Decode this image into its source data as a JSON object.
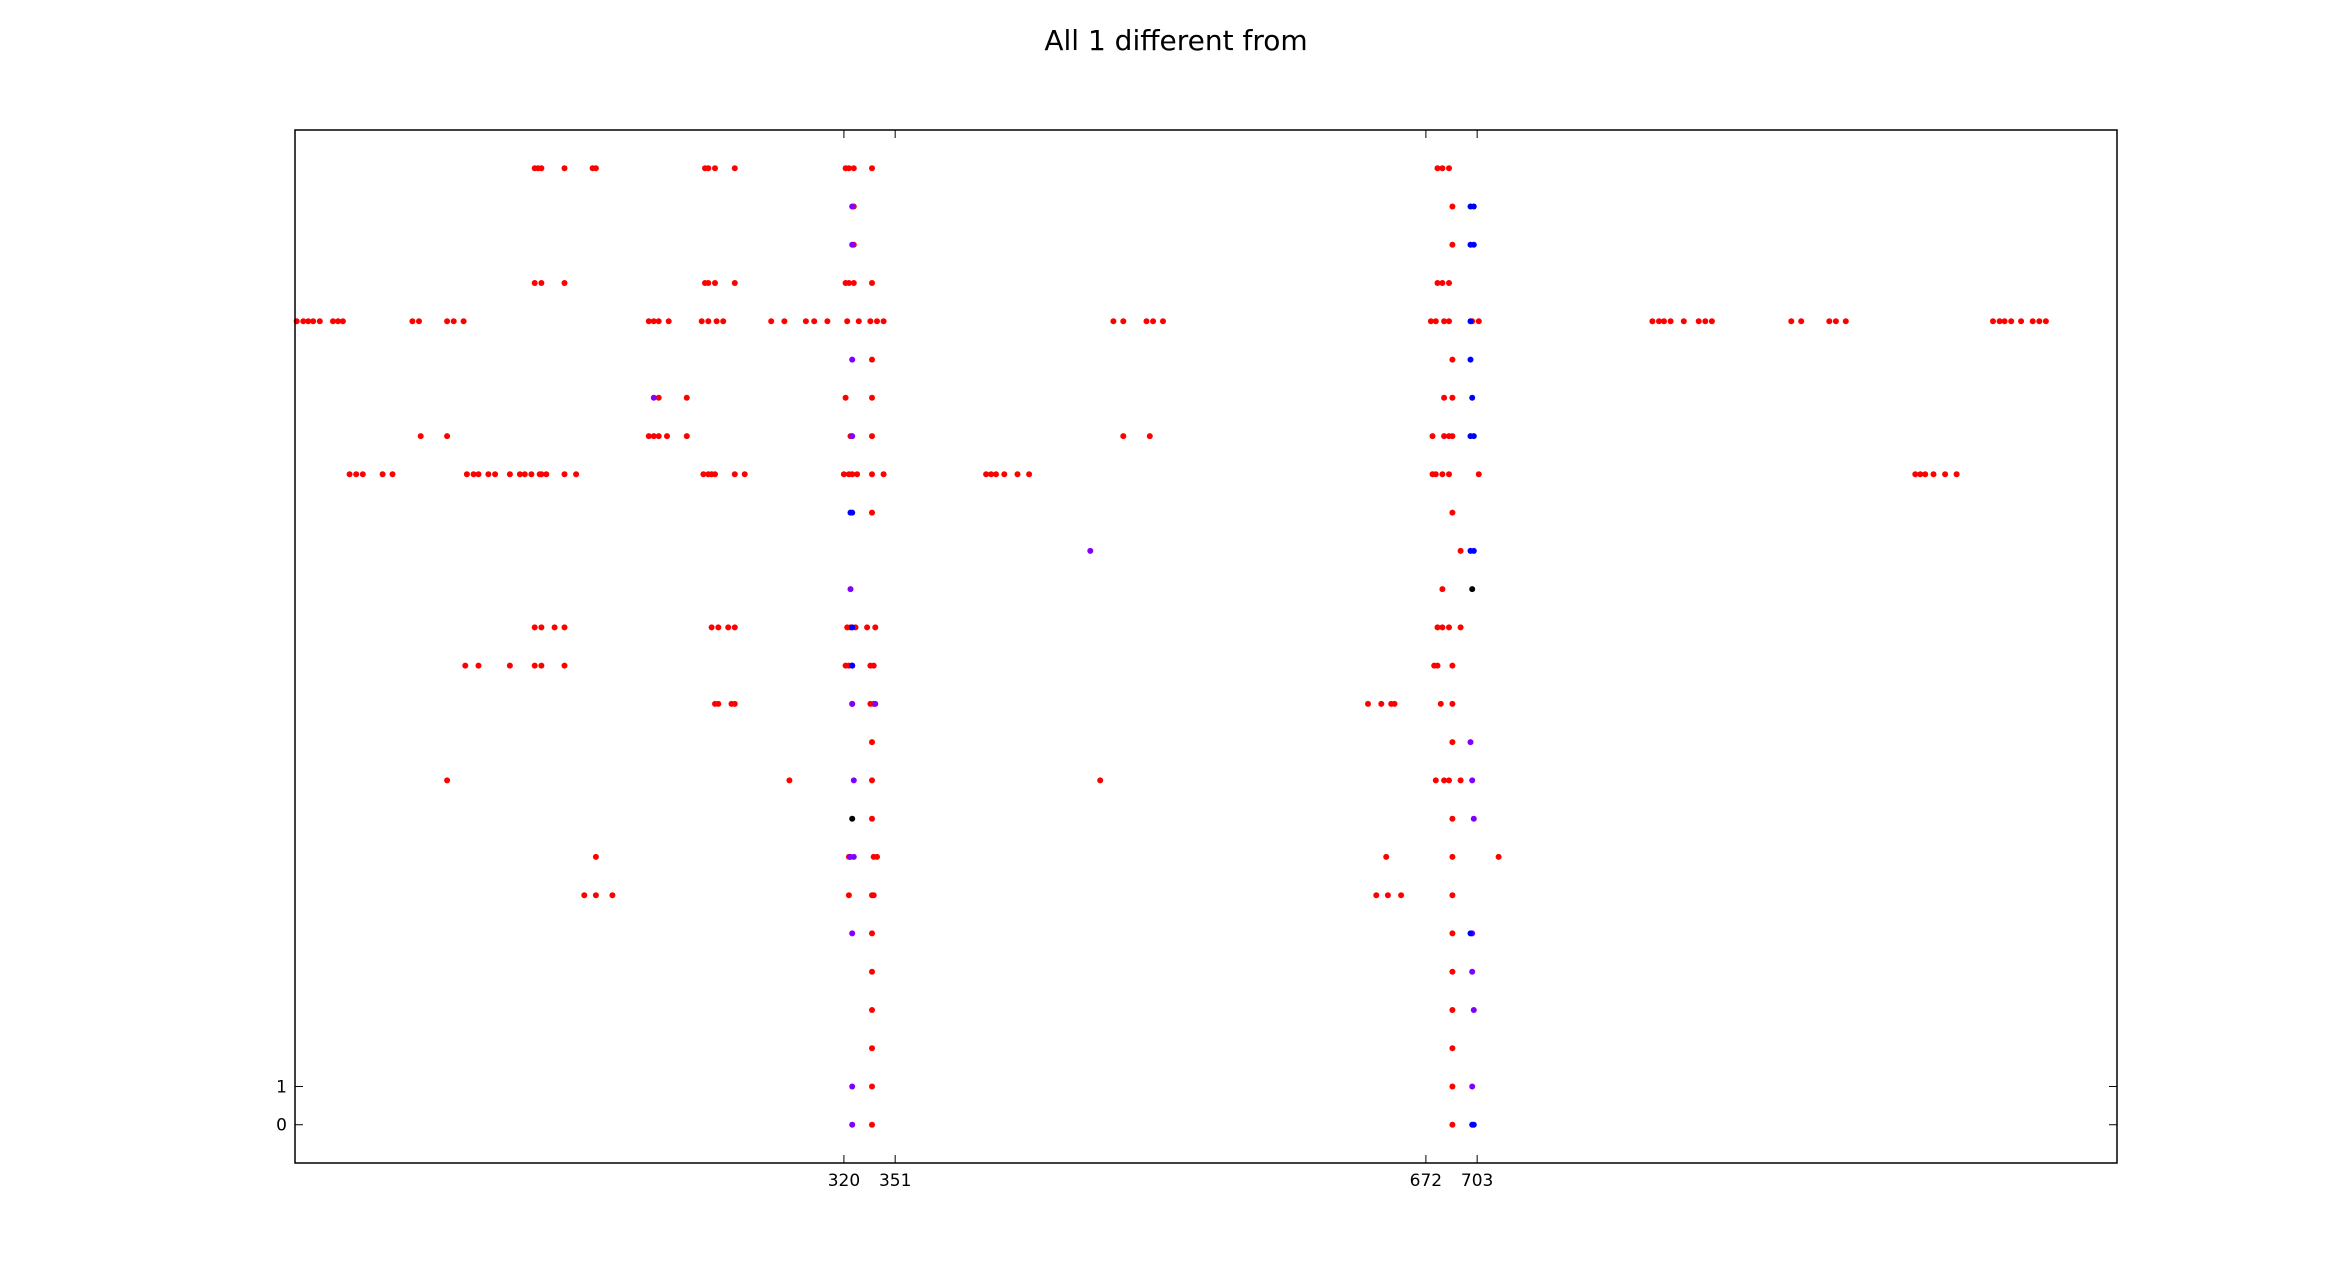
{
  "chart_data": {
    "type": "scatter",
    "title": "All 1 different from",
    "xlabel": "",
    "ylabel": "",
    "xlim": [
      -12,
      1090
    ],
    "ylim": [
      -1,
      26
    ],
    "grid": false,
    "xticks": [
      320,
      351,
      672,
      703
    ],
    "yticks": [
      0,
      1
    ],
    "colors": {
      "red": "#ff0000",
      "purple": "#7f00ff",
      "blue": "#0000ff",
      "black": "#000000"
    },
    "series": [
      {
        "color": "red",
        "points": [
          [
            133,
            25
          ],
          [
            135,
            25
          ],
          [
            137,
            25
          ],
          [
            151,
            25
          ],
          [
            168,
            25
          ],
          [
            170,
            25
          ],
          [
            236,
            25
          ],
          [
            238,
            25
          ],
          [
            242,
            25
          ],
          [
            254,
            25
          ],
          [
            321,
            25
          ],
          [
            323,
            25
          ],
          [
            326,
            25
          ],
          [
            337,
            25
          ],
          [
            679,
            25
          ],
          [
            682,
            25
          ],
          [
            686,
            25
          ],
          [
            326,
            24
          ],
          [
            688,
            24
          ],
          [
            326,
            23
          ],
          [
            688,
            23
          ],
          [
            133,
            22
          ],
          [
            137,
            22
          ],
          [
            151,
            22
          ],
          [
            236,
            22
          ],
          [
            238,
            22
          ],
          [
            242,
            22
          ],
          [
            254,
            22
          ],
          [
            321,
            22
          ],
          [
            323,
            22
          ],
          [
            326,
            22
          ],
          [
            337,
            22
          ],
          [
            679,
            22
          ],
          [
            682,
            22
          ],
          [
            686,
            22
          ],
          [
            -11,
            21
          ],
          [
            -7,
            21
          ],
          [
            -4,
            21
          ],
          [
            -1,
            21
          ],
          [
            3,
            21
          ],
          [
            11,
            21
          ],
          [
            14,
            21
          ],
          [
            17,
            21
          ],
          [
            59,
            21
          ],
          [
            63,
            21
          ],
          [
            80,
            21
          ],
          [
            84,
            21
          ],
          [
            90,
            21
          ],
          [
            202,
            21
          ],
          [
            205,
            21
          ],
          [
            208,
            21
          ],
          [
            214,
            21
          ],
          [
            234,
            21
          ],
          [
            238,
            21
          ],
          [
            243,
            21
          ],
          [
            247,
            21
          ],
          [
            276,
            21
          ],
          [
            284,
            21
          ],
          [
            297,
            21
          ],
          [
            302,
            21
          ],
          [
            310,
            21
          ],
          [
            322,
            21
          ],
          [
            329,
            21
          ],
          [
            336,
            21
          ],
          [
            340,
            21
          ],
          [
            344,
            21
          ],
          [
            483,
            21
          ],
          [
            489,
            21
          ],
          [
            503,
            21
          ],
          [
            507,
            21
          ],
          [
            513,
            21
          ],
          [
            675,
            21
          ],
          [
            678,
            21
          ],
          [
            683,
            21
          ],
          [
            686,
            21
          ],
          [
            700,
            21
          ],
          [
            704,
            21
          ],
          [
            809,
            21
          ],
          [
            813,
            21
          ],
          [
            816,
            21
          ],
          [
            820,
            21
          ],
          [
            828,
            21
          ],
          [
            837,
            21
          ],
          [
            841,
            21
          ],
          [
            845,
            21
          ],
          [
            893,
            21
          ],
          [
            899,
            21
          ],
          [
            916,
            21
          ],
          [
            920,
            21
          ],
          [
            926,
            21
          ],
          [
            1015,
            21
          ],
          [
            1019,
            21
          ],
          [
            1022,
            21
          ],
          [
            1026,
            21
          ],
          [
            1032,
            21
          ],
          [
            1039,
            21
          ],
          [
            1043,
            21
          ],
          [
            1047,
            21
          ],
          [
            337,
            20
          ],
          [
            688,
            20
          ],
          [
            208,
            19
          ],
          [
            225,
            19
          ],
          [
            321,
            19
          ],
          [
            337,
            19
          ],
          [
            683,
            19
          ],
          [
            688,
            19
          ],
          [
            64,
            18
          ],
          [
            80,
            18
          ],
          [
            202,
            18
          ],
          [
            205,
            18
          ],
          [
            208,
            18
          ],
          [
            213,
            18
          ],
          [
            225,
            18
          ],
          [
            324,
            18
          ],
          [
            337,
            18
          ],
          [
            489,
            18
          ],
          [
            505,
            18
          ],
          [
            676,
            18
          ],
          [
            683,
            18
          ],
          [
            686,
            18
          ],
          [
            688,
            18
          ],
          [
            688,
            16
          ],
          [
            21,
            17
          ],
          [
            25,
            17
          ],
          [
            29,
            17
          ],
          [
            41,
            17
          ],
          [
            47,
            17
          ],
          [
            92,
            17
          ],
          [
            96,
            17
          ],
          [
            99,
            17
          ],
          [
            105,
            17
          ],
          [
            109,
            17
          ],
          [
            118,
            17
          ],
          [
            124,
            17
          ],
          [
            127,
            17
          ],
          [
            131,
            17
          ],
          [
            136,
            17
          ],
          [
            137,
            17
          ],
          [
            140,
            17
          ],
          [
            151,
            17
          ],
          [
            158,
            17
          ],
          [
            235,
            17
          ],
          [
            238,
            17
          ],
          [
            240,
            17
          ],
          [
            242,
            17
          ],
          [
            254,
            17
          ],
          [
            260,
            17
          ],
          [
            320,
            17
          ],
          [
            323,
            17
          ],
          [
            325,
            17
          ],
          [
            328,
            17
          ],
          [
            337,
            17
          ],
          [
            344,
            17
          ],
          [
            406,
            17
          ],
          [
            409,
            17
          ],
          [
            412,
            17
          ],
          [
            417,
            17
          ],
          [
            425,
            17
          ],
          [
            432,
            17
          ],
          [
            676,
            17
          ],
          [
            678,
            17
          ],
          [
            682,
            17
          ],
          [
            686,
            17
          ],
          [
            704,
            17
          ],
          [
            968,
            17
          ],
          [
            971,
            17
          ],
          [
            974,
            17
          ],
          [
            979,
            17
          ],
          [
            986,
            17
          ],
          [
            993,
            17
          ],
          [
            337,
            16
          ],
          [
            693,
            15
          ],
          [
            682,
            14
          ],
          [
            133,
            13
          ],
          [
            137,
            13
          ],
          [
            145,
            13
          ],
          [
            151,
            13
          ],
          [
            240,
            13
          ],
          [
            244,
            13
          ],
          [
            250,
            13
          ],
          [
            254,
            13
          ],
          [
            322,
            13
          ],
          [
            324,
            13
          ],
          [
            327,
            13
          ],
          [
            334,
            13
          ],
          [
            339,
            13
          ],
          [
            679,
            13
          ],
          [
            682,
            13
          ],
          [
            686,
            13
          ],
          [
            693,
            13
          ],
          [
            91,
            12
          ],
          [
            99,
            12
          ],
          [
            118,
            12
          ],
          [
            133,
            12
          ],
          [
            137,
            12
          ],
          [
            151,
            12
          ],
          [
            321,
            12
          ],
          [
            323,
            12
          ],
          [
            336,
            12
          ],
          [
            338,
            12
          ],
          [
            677,
            12
          ],
          [
            679,
            12
          ],
          [
            688,
            12
          ],
          [
            242,
            11
          ],
          [
            244,
            11
          ],
          [
            252,
            11
          ],
          [
            254,
            11
          ],
          [
            325,
            11
          ],
          [
            336,
            11
          ],
          [
            338,
            11
          ],
          [
            637,
            11
          ],
          [
            645,
            11
          ],
          [
            651,
            11
          ],
          [
            653,
            11
          ],
          [
            681,
            11
          ],
          [
            688,
            11
          ],
          [
            337,
            10
          ],
          [
            688,
            10
          ],
          [
            80,
            9
          ],
          [
            287,
            9
          ],
          [
            337,
            9
          ],
          [
            475,
            9
          ],
          [
            678,
            9
          ],
          [
            683,
            9
          ],
          [
            686,
            9
          ],
          [
            693,
            9
          ],
          [
            337,
            8
          ],
          [
            688,
            8
          ],
          [
            170,
            7
          ],
          [
            323,
            7
          ],
          [
            338,
            7
          ],
          [
            340,
            7
          ],
          [
            648,
            7
          ],
          [
            688,
            7
          ],
          [
            716,
            7
          ],
          [
            163,
            6
          ],
          [
            170,
            6
          ],
          [
            180,
            6
          ],
          [
            323,
            6
          ],
          [
            337,
            6
          ],
          [
            338,
            6
          ],
          [
            642,
            6
          ],
          [
            649,
            6
          ],
          [
            657,
            6
          ],
          [
            688,
            6
          ],
          [
            337,
            5
          ],
          [
            688,
            5
          ],
          [
            337,
            4
          ],
          [
            688,
            4
          ],
          [
            337,
            3
          ],
          [
            688,
            3
          ],
          [
            337,
            2
          ],
          [
            688,
            2
          ],
          [
            337,
            1
          ],
          [
            688,
            1
          ],
          [
            337,
            0
          ],
          [
            688,
            0
          ]
        ]
      },
      {
        "color": "purple",
        "points": [
          [
            325,
            24
          ],
          [
            325,
            23
          ],
          [
            325,
            20
          ],
          [
            205,
            19
          ],
          [
            325,
            18
          ],
          [
            469,
            15
          ],
          [
            324,
            14
          ],
          [
            325,
            12
          ],
          [
            325,
            11
          ],
          [
            339,
            11
          ],
          [
            699,
            10
          ],
          [
            326,
            9
          ],
          [
            700,
            9
          ],
          [
            701,
            8
          ],
          [
            324,
            7
          ],
          [
            326,
            7
          ],
          [
            325,
            5
          ],
          [
            700,
            5
          ],
          [
            700,
            4
          ],
          [
            701,
            3
          ],
          [
            325,
            1
          ],
          [
            700,
            1
          ],
          [
            325,
            0
          ]
        ]
      },
      {
        "color": "blue",
        "points": [
          [
            699,
            24
          ],
          [
            701,
            24
          ],
          [
            699,
            23
          ],
          [
            701,
            23
          ],
          [
            699,
            21
          ],
          [
            699,
            20
          ],
          [
            700,
            19
          ],
          [
            699,
            18
          ],
          [
            701,
            18
          ],
          [
            325,
            16
          ],
          [
            324,
            16
          ],
          [
            699,
            15
          ],
          [
            701,
            15
          ],
          [
            325,
            13
          ],
          [
            325,
            12
          ],
          [
            699,
            5
          ],
          [
            700,
            0
          ],
          [
            701,
            0
          ]
        ]
      },
      {
        "color": "black",
        "points": [
          [
            700,
            14
          ],
          [
            325,
            8
          ]
        ]
      }
    ]
  }
}
